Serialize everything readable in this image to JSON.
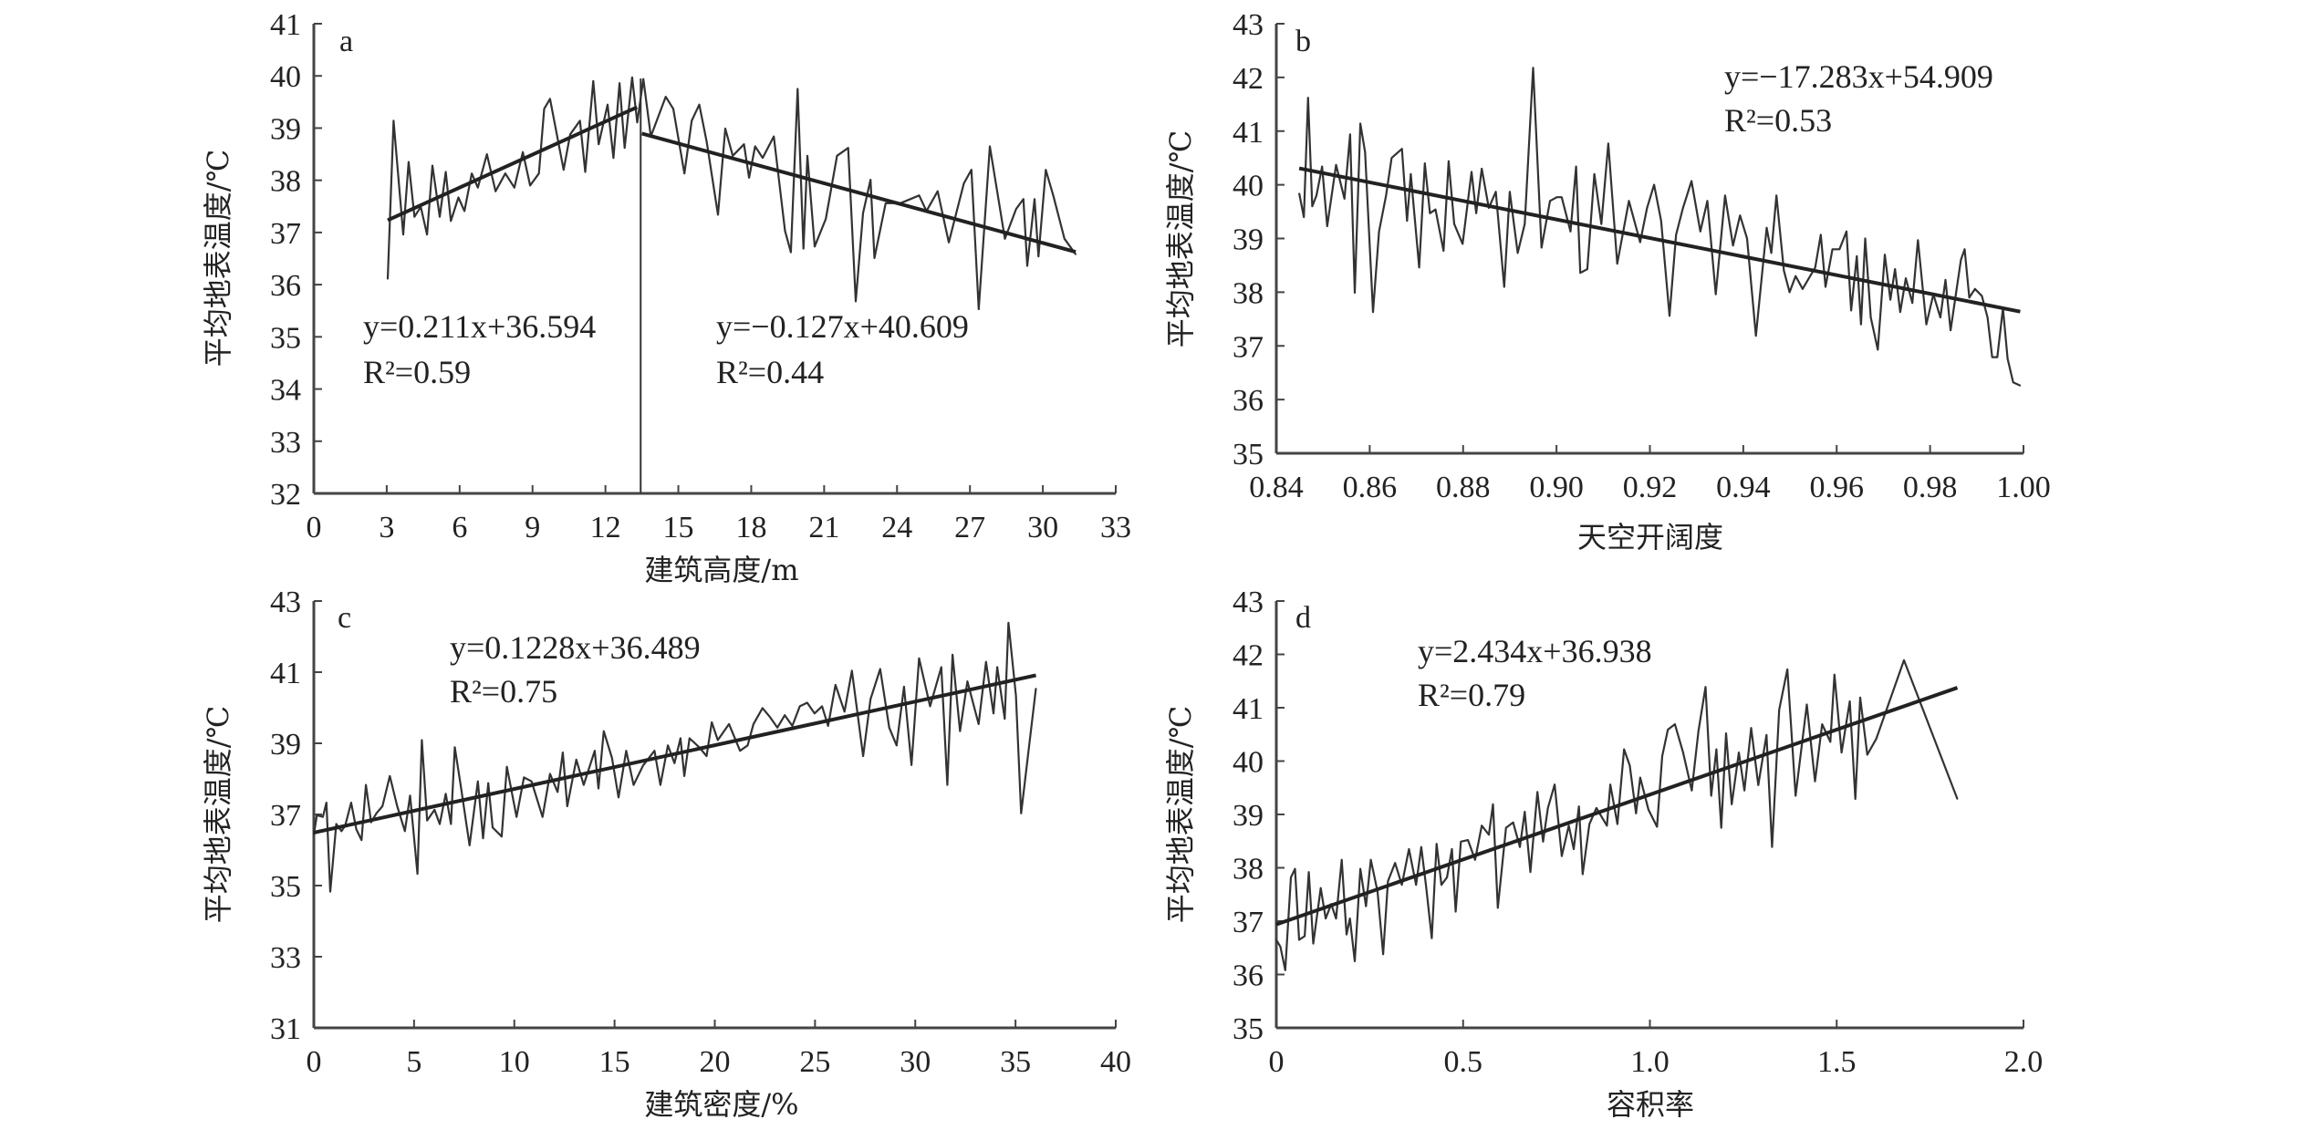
{
  "chart_data": [
    {
      "panel": "a",
      "type": "line",
      "xlabel": "建筑高度/m",
      "ylabel": "平均地表温度/℃",
      "xlim": [
        0,
        33
      ],
      "ylim": [
        32,
        41
      ],
      "xticks": [
        "0",
        "3",
        "6",
        "9",
        "12",
        "15",
        "18",
        "21",
        "24",
        "27",
        "30",
        "33"
      ],
      "yticks": [
        "32",
        "33",
        "34",
        "35",
        "36",
        "37",
        "38",
        "39",
        "40",
        "41"
      ],
      "grid": false,
      "color": "#333333",
      "x": [
        3.04,
        3.28,
        3.68,
        3.9,
        4.14,
        4.4,
        4.66,
        4.88,
        5.18,
        5.43,
        5.64,
        5.95,
        6.2,
        6.5,
        6.75,
        7.12,
        7.48,
        7.88,
        8.25,
        8.6,
        8.9,
        9.26,
        9.48,
        9.72,
        10.28,
        10.55,
        10.95,
        11.17,
        11.5,
        11.72,
        12.09,
        12.33,
        12.58,
        12.79,
        13.1,
        13.31,
        13.56,
        13.87,
        14.48,
        14.79,
        15.25,
        15.55,
        15.86,
        16.17,
        16.63,
        16.93,
        17.24,
        17.7,
        17.91,
        18.16,
        18.47,
        18.93,
        19.39,
        19.63,
        19.91,
        20.15,
        20.31,
        20.61,
        21.07,
        21.53,
        21.99,
        22.3,
        22.6,
        22.91,
        23.07,
        23.53,
        24.14,
        24.91,
        25.21,
        25.67,
        26.13,
        26.75,
        27.06,
        27.36,
        27.82,
        28.44,
        28.9,
        29.2,
        29.36,
        29.66,
        29.82,
        30.12,
        30.43,
        30.89,
        31.35
      ],
      "y": [
        36.11,
        39.14,
        36.96,
        38.35,
        37.3,
        37.49,
        36.96,
        38.28,
        37.3,
        38.16,
        37.22,
        37.67,
        37.41,
        38.13,
        37.86,
        38.5,
        37.79,
        38.13,
        37.86,
        38.54,
        37.9,
        38.13,
        39.37,
        39.56,
        38.2,
        38.88,
        39.14,
        38.16,
        39.9,
        38.69,
        39.45,
        38.43,
        39.86,
        38.62,
        39.97,
        39.11,
        39.94,
        38.84,
        39.6,
        39.37,
        38.13,
        39.14,
        39.45,
        38.73,
        37.34,
        38.99,
        38.47,
        38.69,
        38.05,
        38.65,
        38.43,
        38.84,
        37.03,
        36.62,
        39.75,
        36.69,
        38.47,
        36.73,
        37.26,
        38.47,
        38.62,
        35.68,
        37.37,
        38.01,
        36.51,
        37.56,
        37.56,
        37.71,
        37.41,
        37.79,
        36.81,
        37.94,
        38.2,
        35.53,
        38.65,
        36.88,
        37.45,
        37.64,
        36.36,
        37.64,
        36.54,
        38.2,
        37.71,
        36.88,
        36.58
      ],
      "breakpoint_x": 13.45,
      "fits": [
        {
          "slope": 0.211,
          "intercept": 36.594,
          "x_range": [
            3.04,
            13.3
          ],
          "equation": "y=0.211x+36.594",
          "r2": "R²=0.59"
        },
        {
          "slope": -0.127,
          "intercept": 40.609,
          "x_range": [
            13.5,
            31.35
          ],
          "equation": "y=−0.127x+40.609",
          "r2": "R²=0.44"
        }
      ]
    },
    {
      "panel": "b",
      "type": "line",
      "xlabel": "天空开阔度",
      "ylabel": "平均地表温度/℃",
      "xlim": [
        0.84,
        1.0
      ],
      "ylim": [
        35,
        43
      ],
      "xticks": [
        "0.84",
        "0.86",
        "0.88",
        "0.90",
        "0.92",
        "0.94",
        "0.96",
        "0.98",
        "1.00"
      ],
      "yticks": [
        "35",
        "36",
        "37",
        "38",
        "39",
        "40",
        "41",
        "42",
        "43"
      ],
      "grid": false,
      "color": "#333333",
      "x": [
        0.8449,
        0.8459,
        0.8468,
        0.8477,
        0.8486,
        0.8498,
        0.8509,
        0.8528,
        0.8546,
        0.8558,
        0.8568,
        0.858,
        0.859,
        0.8607,
        0.862,
        0.8635,
        0.8647,
        0.8669,
        0.868,
        0.8688,
        0.8706,
        0.8718,
        0.8729,
        0.8741,
        0.8758,
        0.8769,
        0.8781,
        0.8799,
        0.8818,
        0.8828,
        0.884,
        0.8855,
        0.887,
        0.8888,
        0.89,
        0.8917,
        0.8932,
        0.895,
        0.8968,
        0.8986,
        0.9001,
        0.9011,
        0.903,
        0.9042,
        0.9051,
        0.9066,
        0.9081,
        0.9096,
        0.9111,
        0.913,
        0.9155,
        0.9179,
        0.9194,
        0.9209,
        0.9224,
        0.9242,
        0.9256,
        0.9271,
        0.9289,
        0.9308,
        0.9323,
        0.9341,
        0.9361,
        0.9378,
        0.9393,
        0.9408,
        0.9427,
        0.945,
        0.946,
        0.9471,
        0.9487,
        0.9499,
        0.9512,
        0.9527,
        0.9554,
        0.9566,
        0.9576,
        0.9591,
        0.9606,
        0.9621,
        0.9631,
        0.9643,
        0.9652,
        0.9661,
        0.9673,
        0.9688,
        0.9703,
        0.9715,
        0.9725,
        0.9736,
        0.9748,
        0.9762,
        0.9774,
        0.9792,
        0.9807,
        0.9822,
        0.9833,
        0.9844,
        0.9866,
        0.9874,
        0.9884,
        0.9896,
        0.9911,
        0.9923,
        0.9933,
        0.9944,
        0.9956,
        0.9966,
        0.9978,
        0.9993
      ],
      "y": [
        39.84,
        39.4,
        41.62,
        39.6,
        39.8,
        40.34,
        39.23,
        40.37,
        39.74,
        40.94,
        37.99,
        41.14,
        40.61,
        37.63,
        39.13,
        39.8,
        40.5,
        40.67,
        39.33,
        40.2,
        38.46,
        40.4,
        39.47,
        39.54,
        38.77,
        40.44,
        39.27,
        38.9,
        40.24,
        39.47,
        40.3,
        39.57,
        39.87,
        38.1,
        39.87,
        38.73,
        39.27,
        42.18,
        38.83,
        39.7,
        39.77,
        39.77,
        39.13,
        40.34,
        38.36,
        38.43,
        40.2,
        39.27,
        40.77,
        38.53,
        39.7,
        38.93,
        39.57,
        40.0,
        39.33,
        37.56,
        39.07,
        39.57,
        40.07,
        39.13,
        39.7,
        37.96,
        39.8,
        38.87,
        39.43,
        39.0,
        37.19,
        39.2,
        38.73,
        39.8,
        38.4,
        38.0,
        38.3,
        38.06,
        38.46,
        39.07,
        38.1,
        38.8,
        38.8,
        39.13,
        37.66,
        38.67,
        37.4,
        39.0,
        37.53,
        36.93,
        38.7,
        37.86,
        38.43,
        37.63,
        38.26,
        37.8,
        38.97,
        37.4,
        37.96,
        37.53,
        38.23,
        37.29,
        38.6,
        38.8,
        37.9,
        38.06,
        37.93,
        37.53,
        36.79,
        36.79,
        37.7,
        36.76,
        36.32,
        36.26
      ],
      "fits": [
        {
          "slope": -17.283,
          "intercept": 54.909,
          "x_range": [
            0.8449,
            0.9993
          ],
          "equation": "y=−17.283x+54.909",
          "r2": "R²=0.53"
        }
      ]
    },
    {
      "panel": "c",
      "type": "line",
      "xlabel": "建筑密度/%",
      "ylabel": "平均地表温度/℃",
      "xlim": [
        0,
        40
      ],
      "ylim": [
        31,
        43
      ],
      "xticks": [
        "0",
        "5",
        "10",
        "15",
        "20",
        "25",
        "30",
        "35",
        "40"
      ],
      "yticks": [
        "31",
        "33",
        "35",
        "37",
        "39",
        "41",
        "43"
      ],
      "grid": false,
      "color": "#333333",
      "x": [
        0,
        0.15,
        0.45,
        0.63,
        0.82,
        1.12,
        1.38,
        1.56,
        1.86,
        2.12,
        2.38,
        2.6,
        2.86,
        3.12,
        3.42,
        3.79,
        4.16,
        4.54,
        4.8,
        5.17,
        5.39,
        5.65,
        6.02,
        6.28,
        6.58,
        6.84,
        7.03,
        7.32,
        7.77,
        8.18,
        8.44,
        8.7,
        8.92,
        9.37,
        9.63,
        10.11,
        10.48,
        10.86,
        11.41,
        11.78,
        12.16,
        12.42,
        12.64,
        13.09,
        13.46,
        14.01,
        14.2,
        14.46,
        14.87,
        15.2,
        15.58,
        15.95,
        16.43,
        16.99,
        17.29,
        17.66,
        17.99,
        18.29,
        18.48,
        18.74,
        19.22,
        19.59,
        19.85,
        20.15,
        20.71,
        21.26,
        21.64,
        21.93,
        22.38,
        22.75,
        23.12,
        23.49,
        23.87,
        24.24,
        24.61,
        24.98,
        25.35,
        25.65,
        26.02,
        26.47,
        26.84,
        27.4,
        27.77,
        28.25,
        28.7,
        29.07,
        29.44,
        29.81,
        30.19,
        30.74,
        31.3,
        31.6,
        31.86,
        32.23,
        32.6,
        33.16,
        33.53,
        33.9,
        34.09,
        34.46,
        34.65,
        35.02,
        35.28,
        36.02
      ],
      "y": [
        36.43,
        36.98,
        36.93,
        37.33,
        34.83,
        36.73,
        36.53,
        36.68,
        37.33,
        36.58,
        36.28,
        37.83,
        36.78,
        37.03,
        37.23,
        38.08,
        37.23,
        36.53,
        37.53,
        35.33,
        39.09,
        36.83,
        37.13,
        36.73,
        37.58,
        36.73,
        38.89,
        37.83,
        36.13,
        37.93,
        36.33,
        37.88,
        36.63,
        36.38,
        38.34,
        36.93,
        38.04,
        37.93,
        36.93,
        38.14,
        37.63,
        38.74,
        37.23,
        38.54,
        37.83,
        38.79,
        37.73,
        39.34,
        38.59,
        37.48,
        38.79,
        37.83,
        38.38,
        38.79,
        37.83,
        38.94,
        38.44,
        39.14,
        38.08,
        39.14,
        38.89,
        38.64,
        39.59,
        39.09,
        39.54,
        38.79,
        38.94,
        39.54,
        39.99,
        39.74,
        39.44,
        39.79,
        39.49,
        40.04,
        40.14,
        39.84,
        40.04,
        39.49,
        40.64,
        39.89,
        41.04,
        38.64,
        40.24,
        41.09,
        39.44,
        38.94,
        40.59,
        38.39,
        41.39,
        40.04,
        41.14,
        37.83,
        41.49,
        39.34,
        40.74,
        39.54,
        41.29,
        39.84,
        41.14,
        39.69,
        42.39,
        40.34,
        37.03,
        40.54
      ],
      "fits": [
        {
          "slope": 0.1228,
          "intercept": 36.489,
          "x_range": [
            0,
            36.02
          ],
          "equation": "y=0.1228x+36.489",
          "r2": "R²=0.75"
        }
      ]
    },
    {
      "panel": "d",
      "type": "line",
      "xlabel": "容积率",
      "ylabel": "平均地表温度/℃",
      "xlim": [
        0,
        2.0
      ],
      "ylim": [
        35,
        43
      ],
      "xticks": [
        "0",
        "0.5",
        "1.0",
        "1.5",
        "2.0"
      ],
      "yticks": [
        "35",
        "36",
        "37",
        "38",
        "39",
        "40",
        "41",
        "42",
        "43"
      ],
      "grid": false,
      "color": "#333333",
      "x": [
        0,
        0.011,
        0.024,
        0.039,
        0.05,
        0.061,
        0.076,
        0.087,
        0.099,
        0.119,
        0.132,
        0.147,
        0.16,
        0.175,
        0.188,
        0.197,
        0.21,
        0.225,
        0.24,
        0.253,
        0.271,
        0.286,
        0.299,
        0.318,
        0.336,
        0.355,
        0.374,
        0.388,
        0.401,
        0.416,
        0.429,
        0.442,
        0.457,
        0.47,
        0.48,
        0.494,
        0.513,
        0.532,
        0.55,
        0.569,
        0.58,
        0.593,
        0.615,
        0.634,
        0.652,
        0.665,
        0.68,
        0.699,
        0.714,
        0.727,
        0.745,
        0.764,
        0.783,
        0.796,
        0.81,
        0.82,
        0.838,
        0.857,
        0.885,
        0.894,
        0.913,
        0.931,
        0.946,
        0.963,
        0.974,
        0.996,
        1.019,
        1.033,
        1.048,
        1.067,
        1.089,
        1.112,
        1.13,
        1.149,
        1.164,
        1.178,
        1.191,
        1.204,
        1.219,
        1.238,
        1.253,
        1.271,
        1.29,
        1.312,
        1.327,
        1.346,
        1.368,
        1.39,
        1.42,
        1.442,
        1.461,
        1.483,
        1.494,
        1.513,
        1.535,
        1.55,
        1.563,
        1.582,
        1.606,
        1.68,
        1.823
      ],
      "y": [
        36.65,
        36.52,
        36.08,
        37.82,
        37.98,
        36.65,
        36.72,
        37.92,
        36.58,
        37.62,
        37.05,
        37.32,
        37.05,
        38.15,
        36.75,
        37.05,
        36.25,
        37.98,
        37.28,
        38.15,
        37.55,
        36.38,
        37.75,
        38.09,
        37.68,
        38.35,
        37.68,
        38.39,
        37.65,
        36.68,
        38.45,
        37.68,
        37.82,
        38.35,
        37.18,
        38.49,
        38.52,
        38.15,
        38.79,
        38.62,
        39.19,
        37.25,
        38.75,
        38.85,
        38.39,
        39.05,
        37.92,
        39.42,
        38.49,
        39.12,
        39.56,
        38.22,
        38.79,
        38.35,
        39.15,
        37.88,
        38.82,
        39.12,
        38.79,
        39.56,
        38.82,
        40.22,
        39.92,
        39.02,
        39.69,
        39.09,
        38.77,
        40.09,
        40.59,
        40.69,
        40.16,
        39.45,
        40.56,
        41.39,
        39.35,
        40.22,
        38.75,
        40.52,
        39.19,
        40.16,
        39.45,
        40.62,
        39.55,
        40.49,
        38.39,
        40.96,
        41.72,
        39.35,
        41.06,
        39.62,
        40.69,
        40.36,
        41.62,
        40.16,
        41.12,
        39.29,
        41.19,
        40.12,
        40.42,
        41.89,
        39.29
      ],
      "fits": [
        {
          "slope": 2.434,
          "intercept": 36.938,
          "x_range": [
            0,
            1.823
          ],
          "equation": "y=2.434x+36.938",
          "r2": "R²=0.79"
        }
      ]
    }
  ]
}
